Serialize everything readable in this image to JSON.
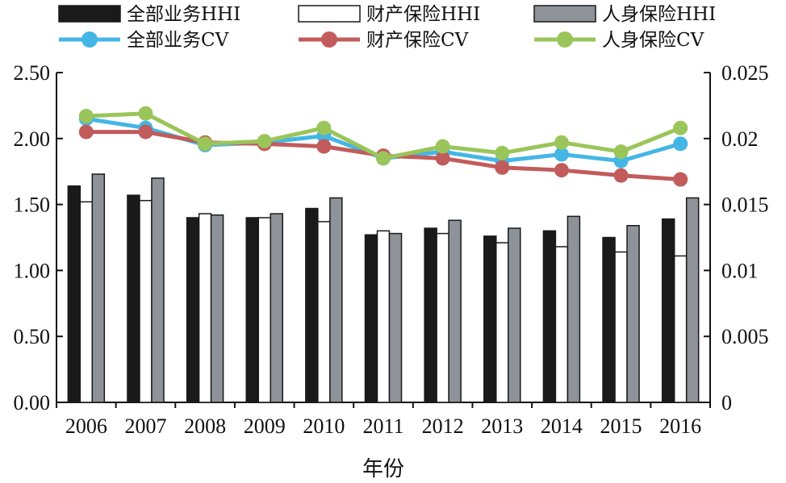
{
  "chart_data": {
    "type": "bar",
    "xlabel": "年份",
    "categories": [
      "2006",
      "2007",
      "2008",
      "2009",
      "2010",
      "2011",
      "2012",
      "2013",
      "2014",
      "2015",
      "2016"
    ],
    "left_axis": {
      "ylim": [
        0,
        2.5
      ],
      "ticks": [
        0,
        0.5,
        1.0,
        1.5,
        2.0,
        2.5
      ],
      "tick_labels": [
        "0.00",
        "0.50",
        "1.00",
        "1.50",
        "2.00",
        "2.50"
      ]
    },
    "right_axis": {
      "ylim": [
        0,
        0.025
      ],
      "ticks": [
        0,
        0.005,
        0.01,
        0.015,
        0.02,
        0.025
      ],
      "tick_labels": [
        "0",
        "0.005",
        "0.01",
        "0.015",
        "0.02",
        "0.025"
      ]
    },
    "bar_series": [
      {
        "name": "全部业务HHI",
        "color": "#1a1a1a",
        "fill": "#1a1a1a",
        "values": [
          1.64,
          1.57,
          1.4,
          1.4,
          1.47,
          1.27,
          1.32,
          1.26,
          1.3,
          1.25,
          1.39
        ]
      },
      {
        "name": "财产保险HHI",
        "color": "#1a1a1a",
        "fill": "#ffffff",
        "values": [
          1.52,
          1.53,
          1.43,
          1.4,
          1.37,
          1.3,
          1.28,
          1.21,
          1.18,
          1.14,
          1.11
        ]
      },
      {
        "name": "人身保险HHI",
        "color": "#1a1a1a",
        "fill": "#8e9399",
        "values": [
          1.73,
          1.7,
          1.42,
          1.43,
          1.55,
          1.28,
          1.38,
          1.32,
          1.41,
          1.34,
          1.55
        ]
      }
    ],
    "line_series": [
      {
        "name": "全部业务CV",
        "color": "#44b6e6",
        "values": [
          0.0215,
          0.0208,
          0.0195,
          0.0197,
          0.0202,
          0.0185,
          0.019,
          0.0183,
          0.0188,
          0.0183,
          0.0196
        ]
      },
      {
        "name": "财产保险CV",
        "color": "#c25b5b",
        "values": [
          0.0205,
          0.0205,
          0.0197,
          0.0196,
          0.0194,
          0.0187,
          0.0185,
          0.0178,
          0.0176,
          0.0172,
          0.0169
        ]
      },
      {
        "name": "人身保险CV",
        "color": "#9ac55a",
        "values": [
          0.0217,
          0.0219,
          0.0196,
          0.0198,
          0.0208,
          0.0185,
          0.0194,
          0.0189,
          0.0197,
          0.019,
          0.0208
        ]
      }
    ],
    "grid": false,
    "legend_position": "top"
  }
}
